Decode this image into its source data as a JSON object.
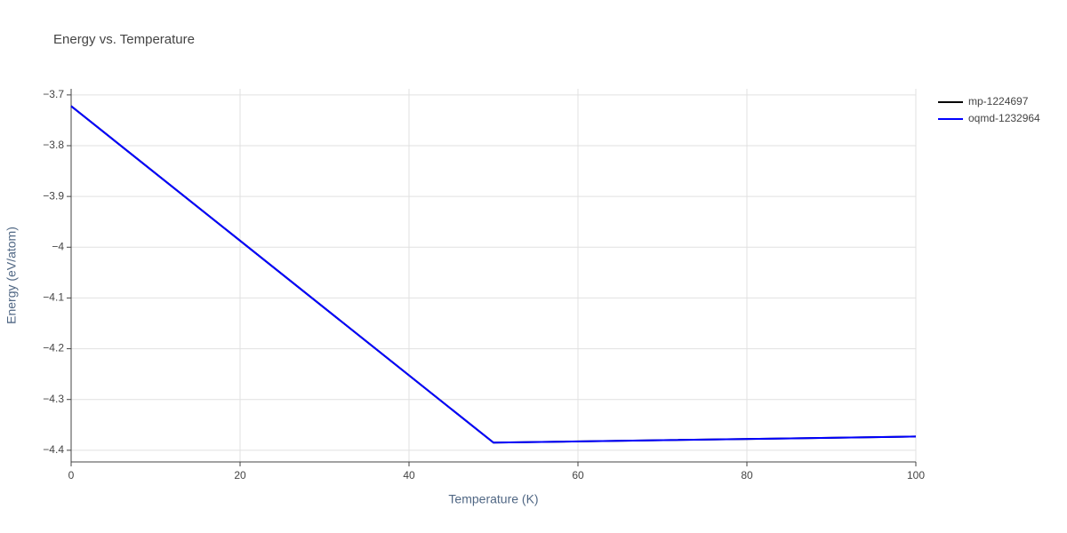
{
  "chart_data": {
    "type": "line",
    "title": "Energy vs. Temperature",
    "x_label": "Temperature (K)",
    "y_label": "Energy (eV/atom)",
    "x": [
      0,
      50,
      100
    ],
    "series": [
      {
        "name": "mp-1224697",
        "color": "#000000",
        "values": [
          -3.722,
          -4.385,
          -4.373
        ]
      },
      {
        "name": "oqmd-1232964",
        "color": "#0000ff",
        "values": [
          -3.722,
          -4.385,
          -4.373
        ]
      }
    ],
    "xlim": [
      0,
      100
    ],
    "xticks": [
      0,
      20,
      40,
      60,
      80,
      100
    ],
    "ylim": [
      -4.423,
      -3.688
    ],
    "yticks": [
      {
        "value": -3.7,
        "label": "−3.7"
      },
      {
        "value": -3.8,
        "label": "−3.8"
      },
      {
        "value": -3.9,
        "label": "−3.9"
      },
      {
        "value": -4,
        "label": "−4"
      },
      {
        "value": -4.1,
        "label": "−4.1"
      },
      {
        "value": -4.2,
        "label": "−4.2"
      },
      {
        "value": -4.3,
        "label": "−4.3"
      },
      {
        "value": -4.4,
        "label": "−4.4"
      }
    ],
    "grid": true,
    "legend": "top-right"
  }
}
